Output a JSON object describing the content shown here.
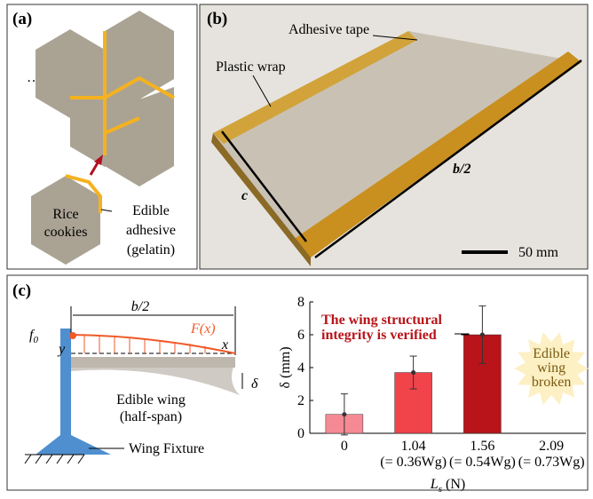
{
  "panels": {
    "a": {
      "label": "(a)",
      "ellipsis": "…",
      "rice_lines": [
        "Rice",
        "cookies"
      ],
      "adhesive_lines": [
        "Edible",
        "adhesive",
        "(gelatin)"
      ]
    },
    "b": {
      "label": "(b)",
      "tape": "Adhesive tape",
      "wrap": "Plastic wrap",
      "c": "c",
      "b_half": "b/2",
      "scale": "50 mm"
    },
    "c": {
      "label": "(c)",
      "b_half": "b/2",
      "f0": {
        "main": "f",
        "sub": "0"
      },
      "y": "y",
      "force": "F(x)",
      "x": "x",
      "delta": "δ",
      "wing_lines": [
        "Edible wing",
        "(half-span)"
      ],
      "fixture": "Wing Fixture"
    }
  },
  "chart_data": {
    "type": "bar",
    "categories": [
      "0",
      "1.04",
      "1.56",
      "2.09"
    ],
    "sublabels": [
      null,
      "(= 0.36Wg)",
      "(= 0.54Wg)",
      "(= 0.73Wg)"
    ],
    "series": [
      {
        "values": [
          1.15,
          3.7,
          6.0,
          null
        ],
        "errors": [
          1.25,
          1.0,
          1.75,
          null
        ],
        "colors": [
          "#f58a94",
          "#f0434a",
          "#b81419",
          "#b81419"
        ]
      }
    ],
    "ylim": [
      0,
      8
    ],
    "yticks": [
      0,
      2,
      4,
      6,
      8
    ],
    "ylabel": "δ (mm)",
    "xlabel": {
      "main": "L",
      "sub": "s",
      "unit": "(N)"
    },
    "annotation_lines": [
      "The wing structural",
      "integrity is verified"
    ],
    "broken_lines": [
      "Edible",
      "wing",
      "broken"
    ]
  }
}
